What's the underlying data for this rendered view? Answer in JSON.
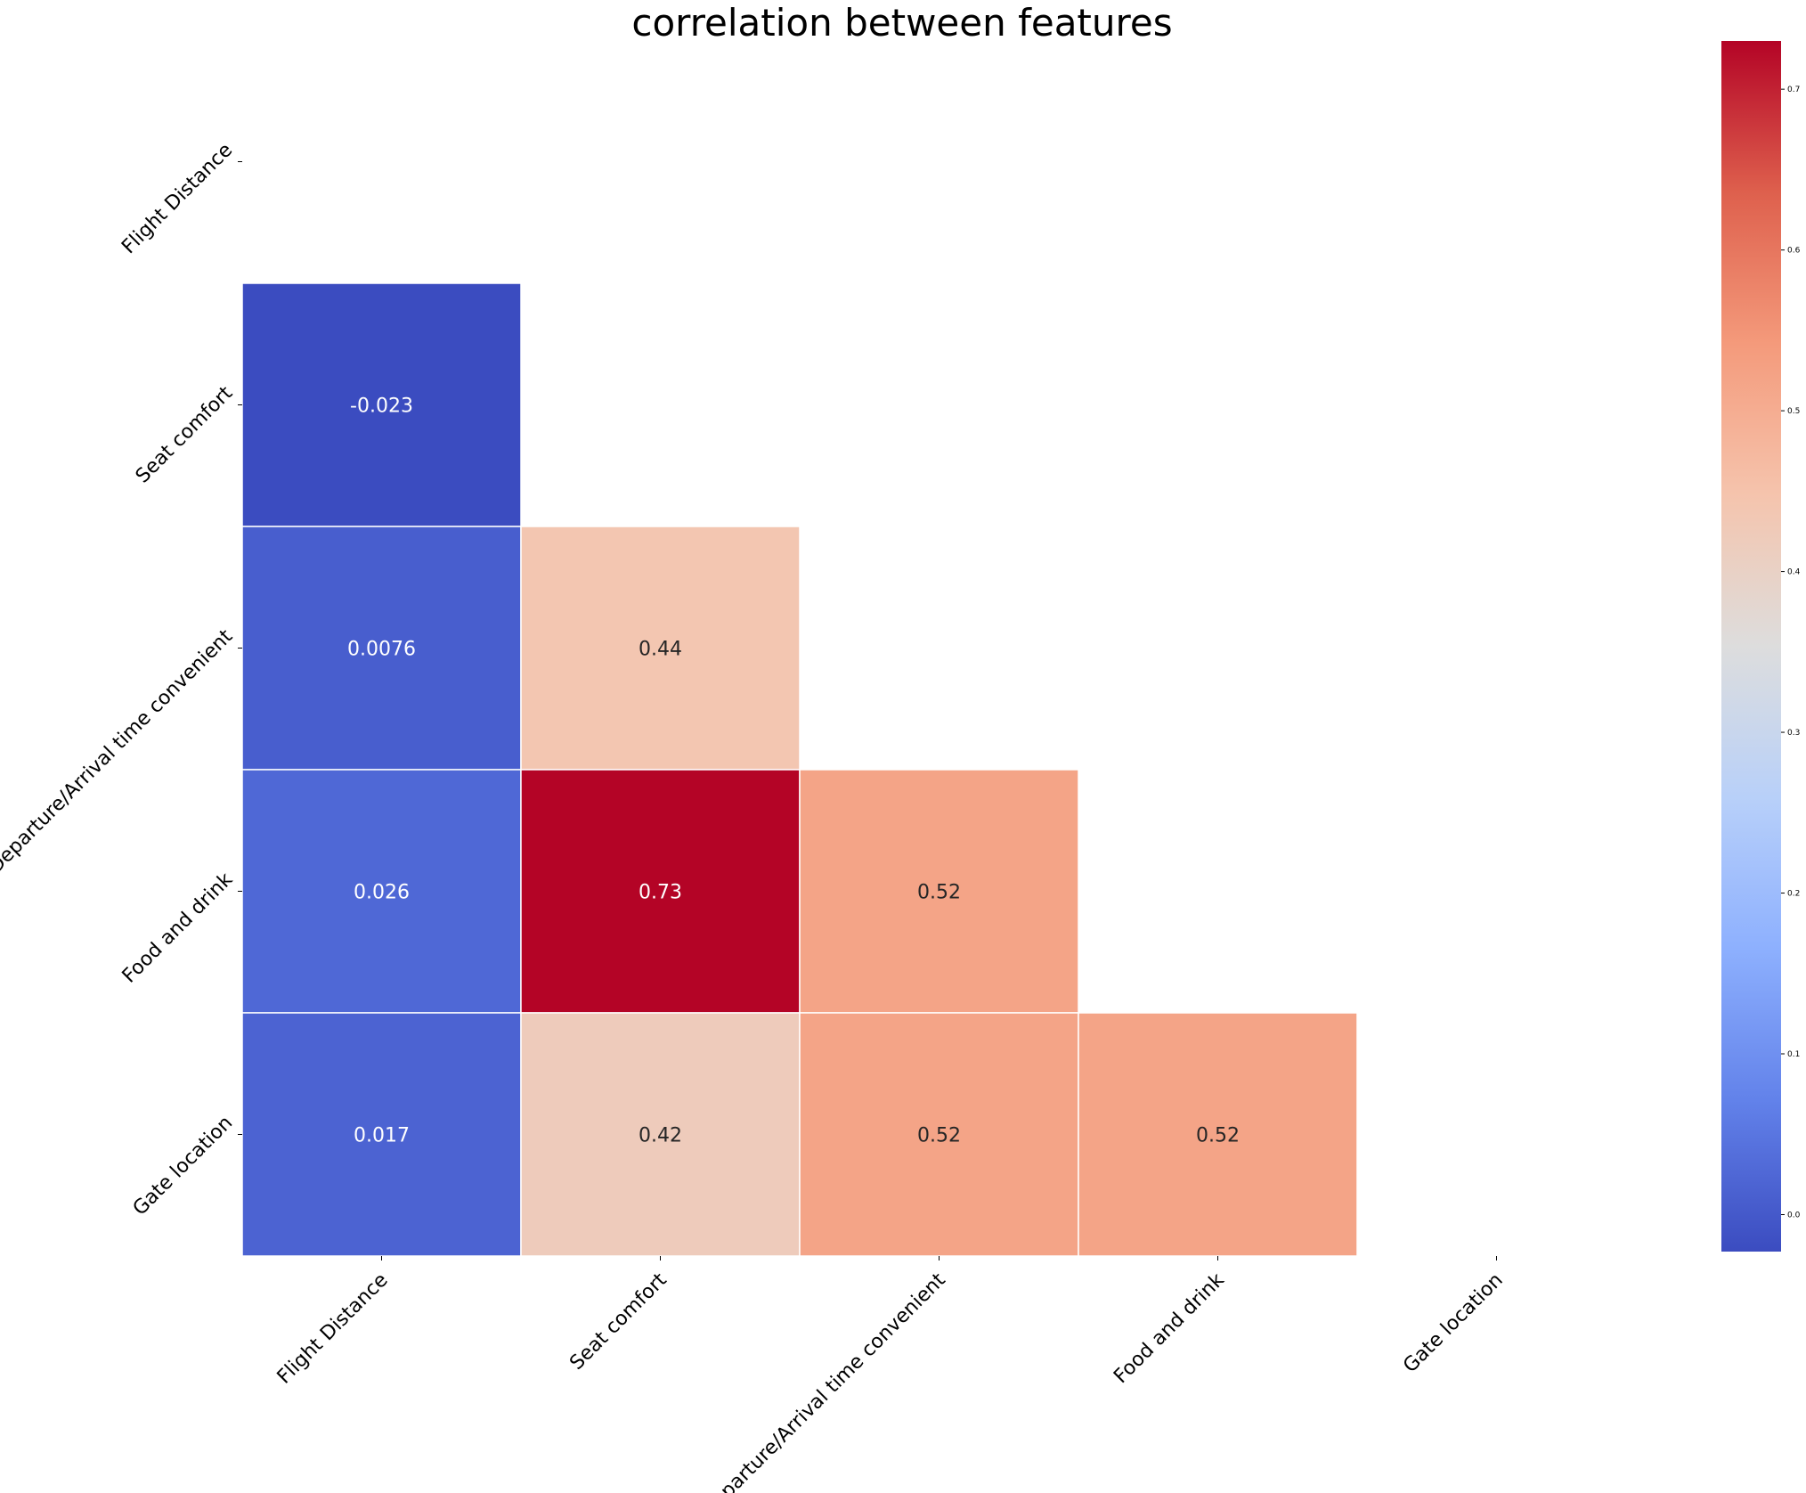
{
  "chart_data": {
    "type": "heatmap",
    "title": "correlation between features",
    "xlabel": "",
    "ylabel": "",
    "labels": [
      "Flight Distance",
      "Seat comfort",
      "Departure/Arrival time convenient",
      "Food and drink",
      "Gate location"
    ],
    "mask": "upper triangle including diagonal",
    "colormap": "coolwarm",
    "vmin": -0.023,
    "vmax": 0.73,
    "values": [
      [
        null,
        null,
        null,
        null,
        null
      ],
      [
        -0.023,
        null,
        null,
        null,
        null
      ],
      [
        0.0076,
        0.44,
        null,
        null,
        null
      ],
      [
        0.026,
        0.73,
        0.52,
        null,
        null
      ],
      [
        0.017,
        0.42,
        0.52,
        0.52,
        null
      ]
    ],
    "annotations": [
      [
        null,
        null,
        null,
        null,
        null
      ],
      [
        "-0.023",
        null,
        null,
        null,
        null
      ],
      [
        "0.0076",
        "0.44",
        null,
        null,
        null
      ],
      [
        "0.026",
        "0.73",
        "0.52",
        null,
        null
      ],
      [
        "0.017",
        "0.42",
        "0.52",
        "0.52",
        null
      ]
    ],
    "colorbar_ticks": [
      "0.0",
      "0.1",
      "0.2",
      "0.3",
      "0.4",
      "0.5",
      "0.6",
      "0.7"
    ],
    "colorbar_tick_values": [
      0.0,
      0.1,
      0.2,
      0.3,
      0.4,
      0.5,
      0.6,
      0.7
    ],
    "legend_placement": "right",
    "grid": false
  }
}
